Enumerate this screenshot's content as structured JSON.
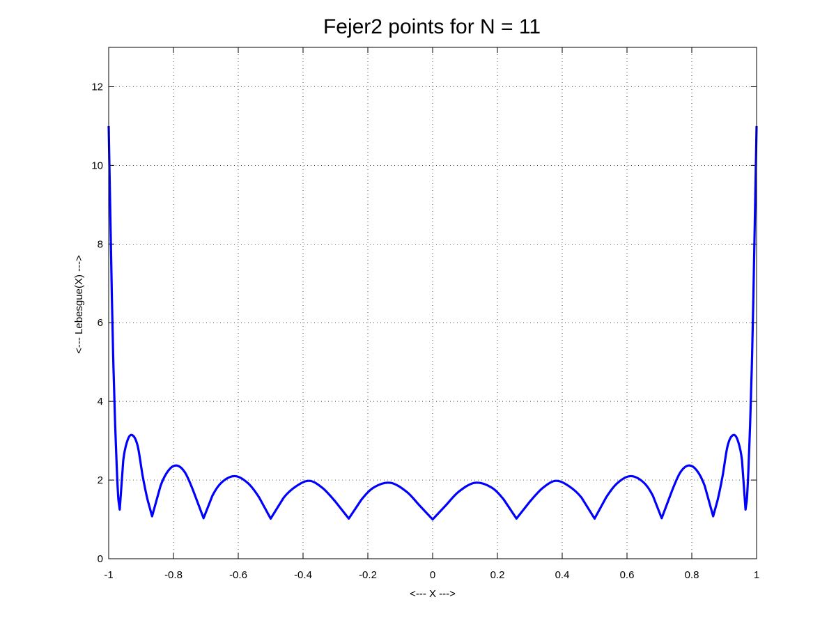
{
  "chart_data": {
    "type": "line",
    "title": "Fejer2 points for N = 11",
    "xlabel": "<--- X --->",
    "ylabel": "<--- Lebesgue(X) --->",
    "xlim": [
      -1,
      1
    ],
    "ylim": [
      0,
      13
    ],
    "xticks": [
      -1,
      -0.8,
      -0.6,
      -0.4,
      -0.2,
      0,
      0.2,
      0.4,
      0.6,
      0.8,
      1
    ],
    "xtick_labels": [
      "-1",
      "-0.8",
      "-0.6",
      "-0.4",
      "-0.2",
      "0",
      "0.2",
      "0.4",
      "0.6",
      "0.8",
      "1"
    ],
    "yticks": [
      0,
      2,
      4,
      6,
      8,
      10,
      12
    ],
    "ytick_labels": [
      "0",
      "2",
      "4",
      "6",
      "8",
      "10",
      "12"
    ],
    "grid": true,
    "series": [
      {
        "color": "#0000ff",
        "nodes": [
          -0.9659,
          -0.866,
          -0.7071,
          -0.5,
          -0.2588,
          0,
          0.2588,
          0.5,
          0.7071,
          0.866,
          0.9659
        ],
        "x": [
          -1.0,
          -0.99,
          -0.985,
          -0.98,
          -0.975,
          -0.97,
          -0.9659,
          -0.955,
          -0.94,
          -0.925,
          -0.91,
          -0.895,
          -0.88,
          -0.866,
          -0.84,
          -0.815,
          -0.79,
          -0.765,
          -0.74,
          -0.7071,
          -0.68,
          -0.65,
          -0.61,
          -0.57,
          -0.535,
          -0.5,
          -0.46,
          -0.42,
          -0.38,
          -0.34,
          -0.3,
          -0.2588,
          -0.22,
          -0.18,
          -0.13,
          -0.08,
          -0.04,
          0,
          0.04,
          0.08,
          0.13,
          0.18,
          0.22,
          0.2588,
          0.3,
          0.34,
          0.38,
          0.42,
          0.46,
          0.5,
          0.535,
          0.57,
          0.61,
          0.65,
          0.68,
          0.7071,
          0.74,
          0.765,
          0.79,
          0.815,
          0.84,
          0.866,
          0.88,
          0.895,
          0.91,
          0.925,
          0.94,
          0.955,
          0.9659,
          0.97,
          0.975,
          0.98,
          0.985,
          0.99,
          1.0
        ],
        "y": [
          11.0,
          6.6,
          4.8,
          3.4,
          2.3,
          1.5,
          1.25,
          2.5,
          3.05,
          3.13,
          2.85,
          2.1,
          1.5,
          1.08,
          1.85,
          2.25,
          2.37,
          2.2,
          1.75,
          1.03,
          1.6,
          1.95,
          2.1,
          1.92,
          1.55,
          1.02,
          1.55,
          1.85,
          1.98,
          1.8,
          1.45,
          1.02,
          1.5,
          1.82,
          1.93,
          1.7,
          1.35,
          1.0,
          1.35,
          1.7,
          1.93,
          1.82,
          1.5,
          1.02,
          1.45,
          1.8,
          1.98,
          1.85,
          1.55,
          1.02,
          1.55,
          1.92,
          2.1,
          1.95,
          1.6,
          1.03,
          1.75,
          2.2,
          2.37,
          2.25,
          1.85,
          1.08,
          1.5,
          2.1,
          2.85,
          3.13,
          3.05,
          2.5,
          1.25,
          1.5,
          2.3,
          3.4,
          4.8,
          6.6,
          11.0
        ]
      }
    ]
  }
}
